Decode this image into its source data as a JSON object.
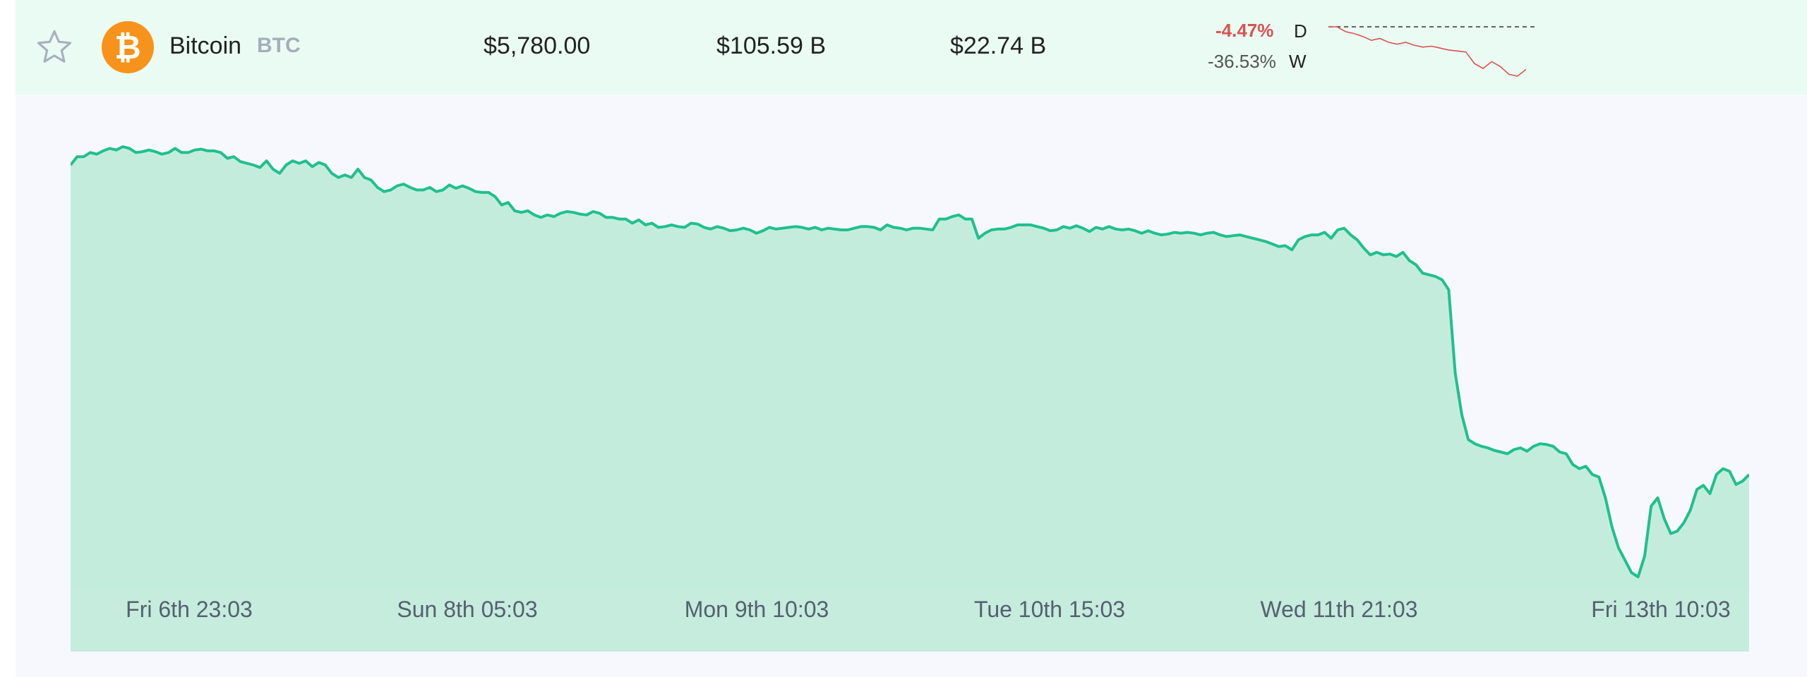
{
  "row": {
    "name": "Bitcoin",
    "ticker": "BTC",
    "logo_symbol": "₿",
    "logo_icon": "bitcoin-icon",
    "favorite_icon": "star-outline-icon",
    "price": "$5,780.00",
    "market_cap": "$105.59 B",
    "volume": "$22.74 B",
    "change_day": "-4.47%",
    "change_week": "-36.53%",
    "period_day": "D",
    "period_week": "W",
    "sparkline_trend": [
      100,
      100,
      99.5,
      99.3,
      99,
      98.6,
      98.8,
      98.4,
      98.2,
      98.4,
      98.1,
      97.9,
      98,
      97.8,
      97.6,
      97.5,
      97.4,
      96.2,
      95.7,
      96.4,
      95.9,
      95.1,
      94.9,
      95.6
    ]
  },
  "colors": {
    "row_bg": "#e9fbf3",
    "accent_line": "#1fc08d",
    "area_fill": "#c4ecdd",
    "negative": "#d9534f",
    "bitcoin_orange": "#f7931a"
  },
  "chart_data": {
    "type": "area",
    "x_labels": [
      "Fri 6th 23:03",
      "Sun 8th 05:03",
      "Mon 9th 10:03",
      "Tue 10th 15:03",
      "Wed 11th 21:03",
      "Fri 13th 10:03"
    ],
    "y_relative": [
      0.95,
      0.96,
      0.96,
      0.965,
      0.963,
      0.967,
      0.97,
      0.968,
      0.972,
      0.97,
      0.965,
      0.966,
      0.968,
      0.966,
      0.963,
      0.965,
      0.97,
      0.965,
      0.965,
      0.968,
      0.969,
      0.967,
      0.967,
      0.965,
      0.958,
      0.96,
      0.954,
      0.952,
      0.95,
      0.947,
      0.955,
      0.945,
      0.94,
      0.95,
      0.955,
      0.952,
      0.955,
      0.948,
      0.953,
      0.95,
      0.94,
      0.935,
      0.938,
      0.935,
      0.945,
      0.935,
      0.932,
      0.923,
      0.918,
      0.92,
      0.925,
      0.927,
      0.923,
      0.92,
      0.92,
      0.923,
      0.918,
      0.92,
      0.926,
      0.922,
      0.925,
      0.922,
      0.918,
      0.917,
      0.917,
      0.912,
      0.902,
      0.905,
      0.895,
      0.893,
      0.895,
      0.89,
      0.887,
      0.89,
      0.888,
      0.892,
      0.894,
      0.893,
      0.891,
      0.89,
      0.894,
      0.892,
      0.887,
      0.887,
      0.885,
      0.885,
      0.88,
      0.884,
      0.878,
      0.88,
      0.875,
      0.876,
      0.878,
      0.876,
      0.875,
      0.88,
      0.879,
      0.875,
      0.873,
      0.876,
      0.874,
      0.871,
      0.872,
      0.874,
      0.872,
      0.868,
      0.871,
      0.875,
      0.873,
      0.874,
      0.875,
      0.876,
      0.875,
      0.873,
      0.875,
      0.872,
      0.874,
      0.873,
      0.872,
      0.872,
      0.874,
      0.876,
      0.876,
      0.875,
      0.872,
      0.878,
      0.875,
      0.874,
      0.872,
      0.874,
      0.874,
      0.873,
      0.872,
      0.885,
      0.885,
      0.888,
      0.89,
      0.885,
      0.885,
      0.862,
      0.868,
      0.872,
      0.873,
      0.873,
      0.875,
      0.878,
      0.878,
      0.878,
      0.876,
      0.874,
      0.871,
      0.872,
      0.876,
      0.874,
      0.877,
      0.874,
      0.87,
      0.875,
      0.873,
      0.876,
      0.873,
      0.872,
      0.873,
      0.871,
      0.868,
      0.871,
      0.868,
      0.866,
      0.867,
      0.869,
      0.868,
      0.869,
      0.868,
      0.866,
      0.868,
      0.869,
      0.866,
      0.864,
      0.865,
      0.866,
      0.864,
      0.862,
      0.86,
      0.858,
      0.855,
      0.852,
      0.853,
      0.848,
      0.86,
      0.864,
      0.866,
      0.866,
      0.869,
      0.862,
      0.872,
      0.874,
      0.866,
      0.86,
      0.85,
      0.842,
      0.845,
      0.842,
      0.843,
      0.84,
      0.845,
      0.835,
      0.83,
      0.82,
      0.818,
      0.816,
      0.812,
      0.8,
      0.7,
      0.65,
      0.62,
      0.615,
      0.612,
      0.61,
      0.607,
      0.605,
      0.603,
      0.608,
      0.61,
      0.606,
      0.612,
      0.615,
      0.614,
      0.612,
      0.605,
      0.603,
      0.59,
      0.585,
      0.588,
      0.578,
      0.575,
      0.55,
      0.515,
      0.49,
      0.475,
      0.46,
      0.455,
      0.48,
      0.54,
      0.55,
      0.525,
      0.507,
      0.51,
      0.52,
      0.535,
      0.56,
      0.565,
      0.555,
      0.578,
      0.585,
      0.582,
      0.566,
      0.57,
      0.578
    ]
  }
}
